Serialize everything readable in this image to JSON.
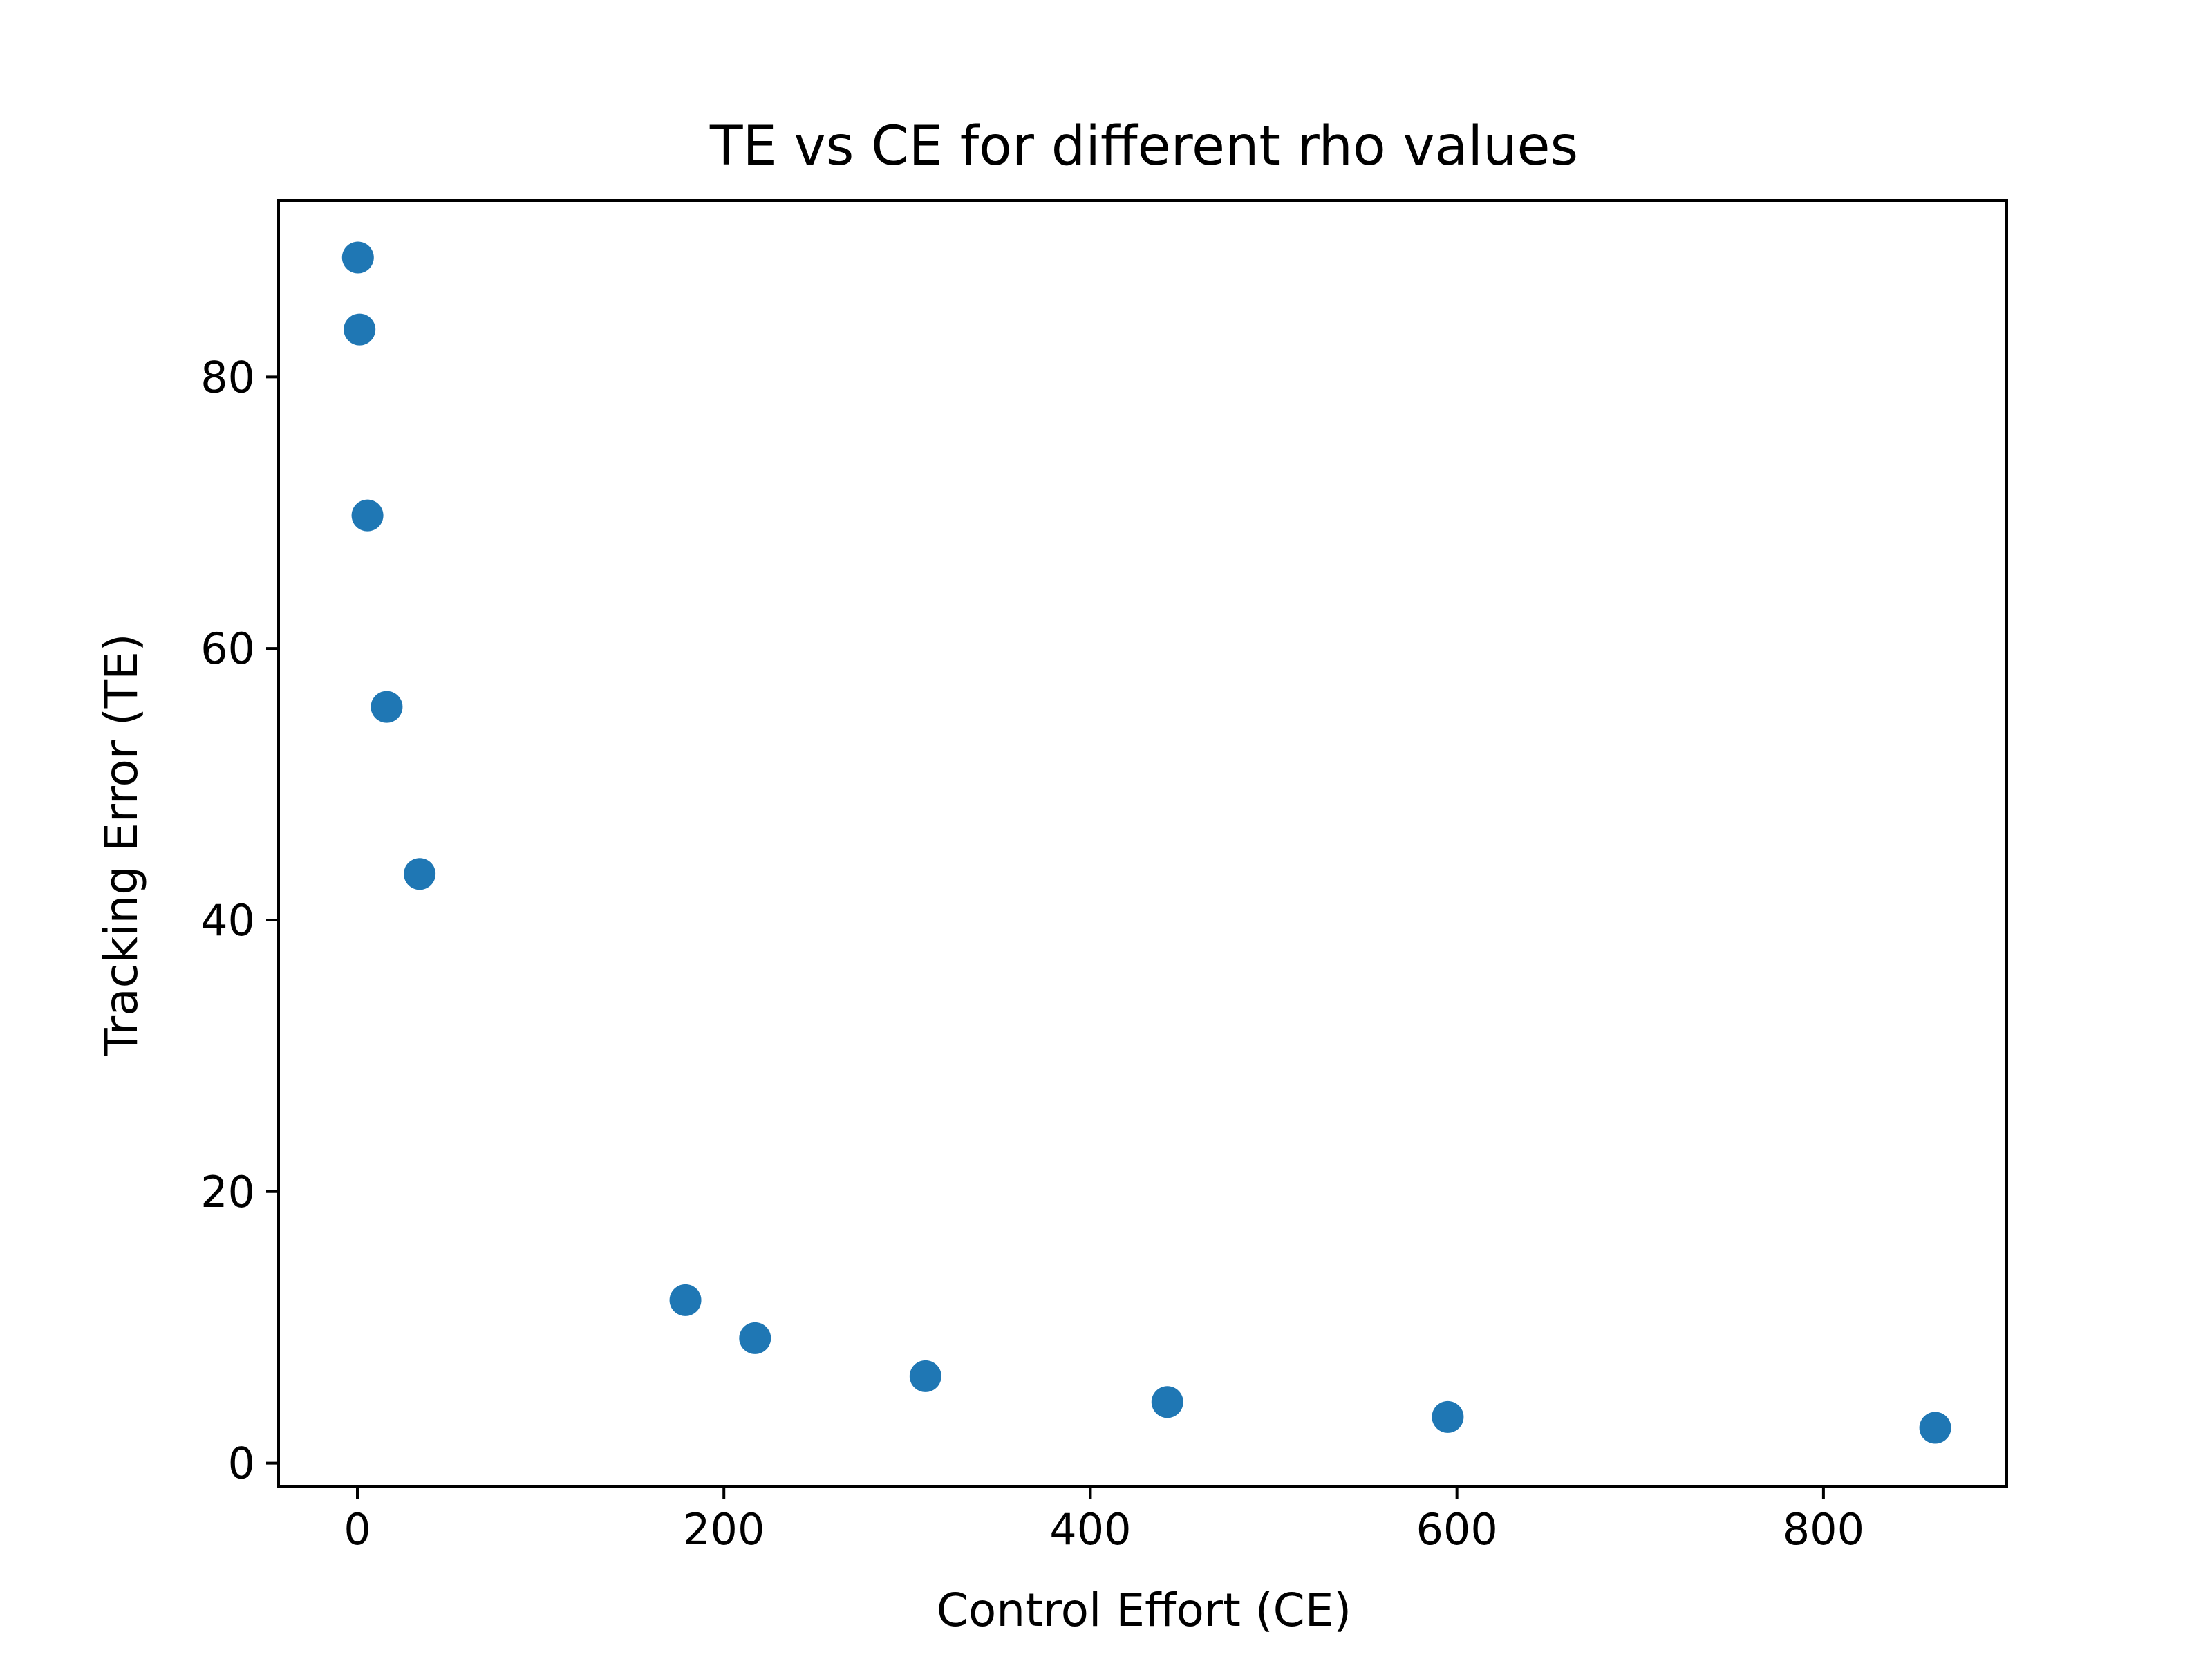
{
  "chart_data": {
    "type": "scatter",
    "title": "TE vs CE for different rho values",
    "xlabel": "Control Effort (CE)",
    "ylabel": "Tracking Error (TE)",
    "xlim": [
      -43,
      900
    ],
    "ylim": [
      -1.7,
      93
    ],
    "x_ticks": [
      0,
      200,
      400,
      600,
      800
    ],
    "y_ticks": [
      0,
      20,
      40,
      60,
      80
    ],
    "grid": false,
    "legend": "none",
    "marker_color": "#1f77b4",
    "points": [
      {
        "x": 0.3,
        "y": 88.8
      },
      {
        "x": 1.2,
        "y": 83.5
      },
      {
        "x": 5.5,
        "y": 69.8
      },
      {
        "x": 16,
        "y": 55.7
      },
      {
        "x": 34,
        "y": 43.4
      },
      {
        "x": 179,
        "y": 12.0
      },
      {
        "x": 217,
        "y": 9.2
      },
      {
        "x": 310,
        "y": 6.4
      },
      {
        "x": 442,
        "y": 4.5
      },
      {
        "x": 595,
        "y": 3.4
      },
      {
        "x": 861,
        "y": 2.6
      }
    ]
  }
}
